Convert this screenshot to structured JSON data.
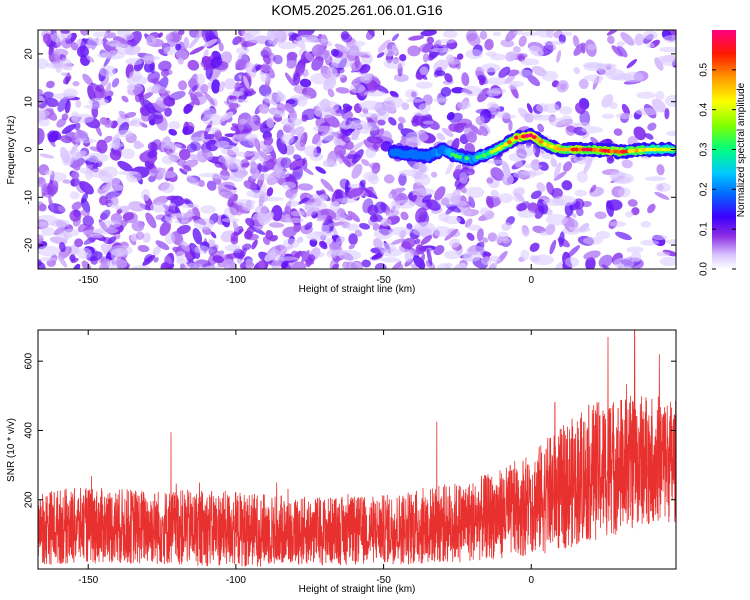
{
  "title": "KOM5.2025.261.06.01.G16",
  "colors": {
    "snr_line": "#e8302e",
    "spectrum_dots": "#8a3cf0",
    "frame": "#000000"
  },
  "chart_data": [
    {
      "type": "heatmap",
      "name": "spectrogram",
      "xlabel": "Height of straight line (km)",
      "ylabel": "Frequency (Hz)",
      "xlim": [
        -167,
        49
      ],
      "ylim": [
        -25,
        25
      ],
      "x_ticks": [
        -150,
        -100,
        -50,
        0
      ],
      "y_ticks": [
        -20,
        -10,
        0,
        10,
        20
      ],
      "colorbar": {
        "label": "Normalized spectral amplitude",
        "range": [
          0,
          0.6
        ],
        "ticks": [
          0.0,
          0.1,
          0.2,
          0.3,
          0.4,
          0.5
        ],
        "colormap": [
          "#ffffff",
          "#9b30ff",
          "#0000ff",
          "#00bfff",
          "#00ff7f",
          "#7fff00",
          "#ffff00",
          "#ff7f00",
          "#ff0000",
          "#ff00aa"
        ]
      },
      "ridge": {
        "description_points_x": [
          -47,
          -40,
          -35,
          -30,
          -25,
          -20,
          -15,
          -10,
          -5,
          0,
          5,
          10,
          20,
          30,
          40,
          48
        ],
        "description_points_freq": [
          -0.5,
          -1.0,
          -1.5,
          0,
          -1.5,
          -2.0,
          -1.0,
          0.5,
          2.5,
          3.0,
          1.0,
          0.0,
          0.0,
          -0.5,
          0.0,
          0.0
        ],
        "amplitude": [
          0.2,
          0.2,
          0.22,
          0.28,
          0.3,
          0.28,
          0.32,
          0.42,
          0.5,
          0.55,
          0.45,
          0.48,
          0.52,
          0.5,
          0.4,
          0.35
        ]
      },
      "background_noise_amplitude": 0.06
    },
    {
      "type": "line",
      "name": "snr",
      "xlabel": "Height of straight line (km)",
      "ylabel": "SNR (10 * v/v)",
      "xlim": [
        -167,
        49
      ],
      "ylim": [
        0,
        690
      ],
      "x_ticks": [
        -150,
        -100,
        -50,
        0
      ],
      "y_ticks": [
        200,
        400,
        600
      ],
      "series": [
        {
          "envelope_x": [
            -167,
            -150,
            -120,
            -100,
            -80,
            -60,
            -50,
            -40,
            -20,
            -10,
            0,
            10,
            20,
            30,
            40,
            49
          ],
          "mean": [
            120,
            125,
            120,
            115,
            110,
            110,
            115,
            120,
            140,
            160,
            190,
            230,
            280,
            300,
            320,
            310
          ],
          "spread": [
            110,
            110,
            110,
            110,
            100,
            100,
            100,
            110,
            120,
            130,
            150,
            180,
            200,
            200,
            190,
            180
          ],
          "peaks": [
            {
              "x": -122,
              "y": 395
            },
            {
              "x": -32,
              "y": 425
            },
            {
              "x": 8,
              "y": 480
            },
            {
              "x": 26,
              "y": 670
            },
            {
              "x": 35,
              "y": 690
            }
          ]
        }
      ]
    }
  ]
}
